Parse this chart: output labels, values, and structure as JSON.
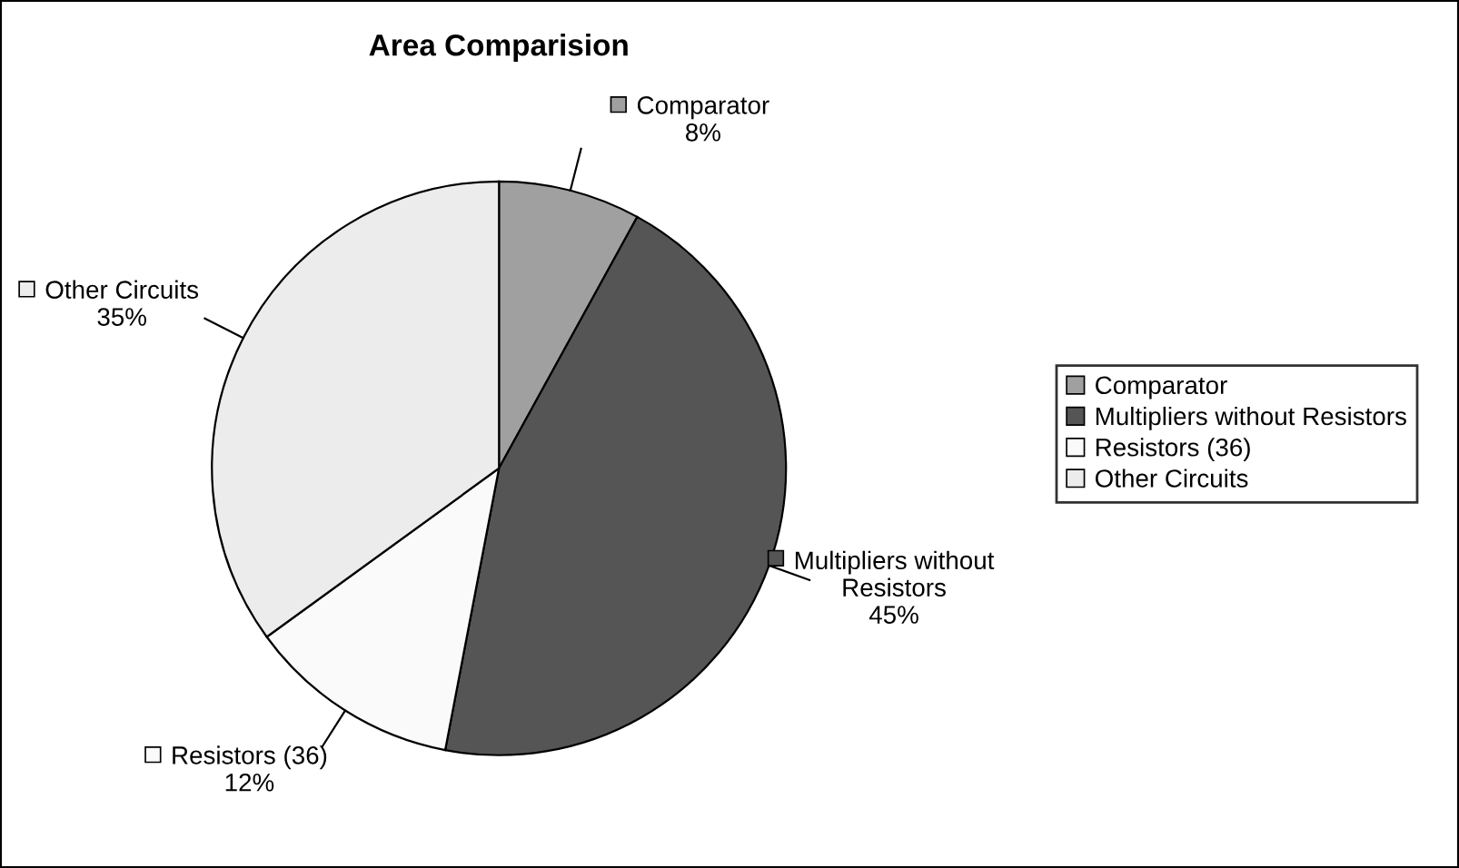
{
  "chart_data": {
    "type": "pie",
    "title": "Area Comparision",
    "categories": [
      "Comparator",
      "Multipliers without Resistors",
      "Resistors (36)",
      "Other Circuits"
    ],
    "values": [
      8,
      45,
      12,
      35
    ],
    "colors": [
      "#a0a0a0",
      "#555555",
      "#fafafa",
      "#ececec"
    ],
    "value_labels": [
      "8%",
      "45%",
      "12%",
      "35%"
    ],
    "legend": "right"
  }
}
